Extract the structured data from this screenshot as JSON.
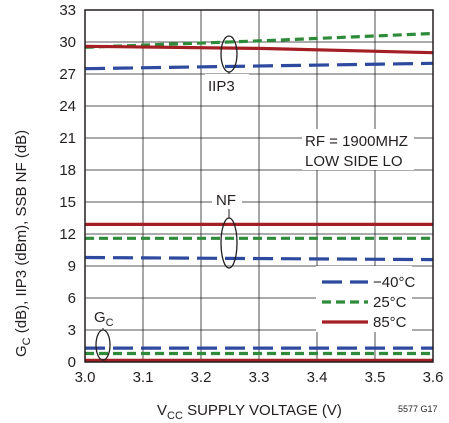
{
  "chart_data": {
    "type": "line",
    "title": "",
    "xlabel": {
      "main": "V",
      "sub": "CC",
      "rest": " SUPPLY VOLTAGE (V)"
    },
    "ylabel": {
      "p1": "G",
      "p1sub": "C",
      "rest": " (dB), IIP3 (dBm), SSB NF (dB)"
    },
    "xlim": [
      3.0,
      3.6
    ],
    "ylim": [
      0,
      33
    ],
    "x_ticks": [
      "3.0",
      "3.1",
      "3.2",
      "3.3",
      "3.4",
      "3.5",
      "3.6"
    ],
    "y_ticks": [
      "0",
      "3",
      "6",
      "9",
      "12",
      "15",
      "18",
      "21",
      "24",
      "27",
      "30",
      "33"
    ],
    "grid": true,
    "legend_position": "bottom-right",
    "series": [
      {
        "name": "−40°C",
        "color": "#2e4a9e",
        "dash": "long-dash",
        "curves": [
          {
            "label": "IIP3",
            "x": [
              3.0,
              3.6
            ],
            "y": [
              27.5,
              28.0
            ]
          },
          {
            "label": "NF",
            "x": [
              3.0,
              3.6
            ],
            "y": [
              9.8,
              9.6
            ]
          },
          {
            "label": "GC",
            "x": [
              3.0,
              3.6
            ],
            "y": [
              1.3,
              1.3
            ]
          }
        ]
      },
      {
        "name": "25°C",
        "color": "#2e8b3a",
        "dash": "short-dash",
        "curves": [
          {
            "label": "IIP3",
            "x": [
              3.0,
              3.3,
              3.6
            ],
            "y": [
              29.5,
              30.1,
              30.8
            ]
          },
          {
            "label": "NF",
            "x": [
              3.0,
              3.6
            ],
            "y": [
              11.6,
              11.6
            ]
          },
          {
            "label": "GC",
            "x": [
              3.0,
              3.6
            ],
            "y": [
              0.8,
              0.8
            ]
          }
        ]
      },
      {
        "name": "85°C",
        "color": "#a31f24",
        "dash": "solid",
        "curves": [
          {
            "label": "IIP3",
            "x": [
              3.0,
              3.3,
              3.6
            ],
            "y": [
              29.6,
              29.4,
              29.0
            ]
          },
          {
            "label": "NF",
            "x": [
              3.0,
              3.6
            ],
            "y": [
              12.9,
              12.9
            ]
          },
          {
            "label": "GC",
            "x": [
              3.0,
              3.6
            ],
            "y": [
              0.15,
              0.15
            ]
          }
        ]
      }
    ],
    "annotations": {
      "iip3": "IIP3",
      "nf": "NF",
      "gc_main": "G",
      "gc_sub": "C",
      "condition_line1": "RF = 1900MHZ",
      "condition_line2": "LOW SIDE LO"
    },
    "figure_id": "5577 G17"
  }
}
